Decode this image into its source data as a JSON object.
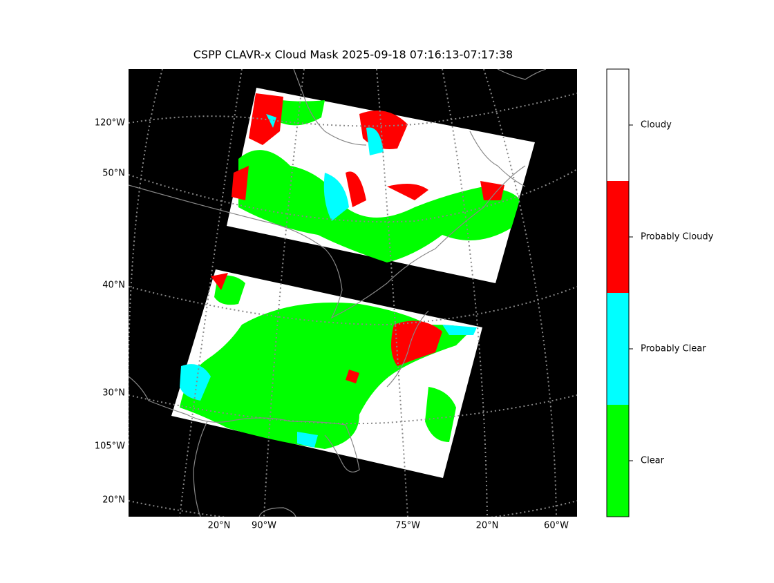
{
  "title": "CSPP CLAVR-x Cloud Mask 2025-09-18 07:16:13-07:17:38",
  "left_labels": [
    "120°W",
    "50°N",
    "40°N",
    "30°N",
    "105°W",
    "20°N"
  ],
  "bottom_labels": [
    "20°N",
    "90°W",
    "75°W",
    "20°N",
    "60°W"
  ],
  "legend": {
    "items": [
      {
        "label": "Cloudy",
        "color": "#ffffff"
      },
      {
        "label": "Probably Cloudy",
        "color": "#ff0000"
      },
      {
        "label": "Probably Clear",
        "color": "#00ffff"
      },
      {
        "label": "Clear",
        "color": "#00ff00"
      }
    ]
  }
}
